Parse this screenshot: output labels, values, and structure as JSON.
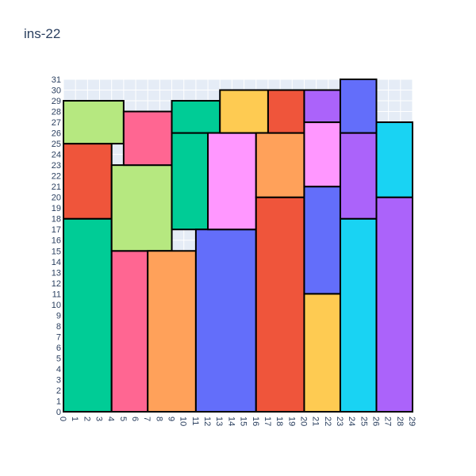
{
  "chart_data": {
    "type": "rect-packing",
    "title": "ins-22",
    "xlim": [
      0,
      29
    ],
    "ylim": [
      0,
      31
    ],
    "x_ticks": [
      0,
      1,
      2,
      3,
      4,
      5,
      6,
      7,
      8,
      9,
      10,
      11,
      12,
      13,
      14,
      15,
      16,
      17,
      18,
      19,
      20,
      21,
      22,
      23,
      24,
      25,
      26,
      27,
      28,
      29
    ],
    "y_ticks": [
      0,
      1,
      2,
      3,
      4,
      5,
      6,
      7,
      8,
      9,
      10,
      11,
      12,
      13,
      14,
      15,
      16,
      17,
      18,
      19,
      20,
      21,
      22,
      23,
      24,
      25,
      26,
      27,
      28,
      29,
      30,
      31
    ],
    "grid": true,
    "plot_bgcolor": "#E5ECF6",
    "rects": [
      {
        "x0": 0,
        "x1": 4,
        "y0": 0,
        "y1": 18,
        "color": "#00CC96"
      },
      {
        "x0": 0,
        "x1": 4,
        "y0": 18,
        "y1": 25,
        "color": "#EF553B"
      },
      {
        "x0": 0,
        "x1": 5,
        "y0": 25,
        "y1": 29,
        "color": "#B6E880"
      },
      {
        "x0": 4,
        "x1": 7,
        "y0": 0,
        "y1": 15,
        "color": "#FF6692"
      },
      {
        "x0": 4,
        "x1": 9,
        "y0": 15,
        "y1": 23,
        "color": "#B6E880"
      },
      {
        "x0": 5,
        "x1": 9,
        "y0": 23,
        "y1": 28,
        "color": "#FF6692"
      },
      {
        "x0": 7,
        "x1": 11,
        "y0": 0,
        "y1": 15,
        "color": "#FFA15A"
      },
      {
        "x0": 9,
        "x1": 12,
        "y0": 17,
        "y1": 26,
        "color": "#00CC96"
      },
      {
        "x0": 9,
        "x1": 13,
        "y0": 26,
        "y1": 29,
        "color": "#00CC96"
      },
      {
        "x0": 11,
        "x1": 16,
        "y0": 0,
        "y1": 17,
        "color": "#636EFA"
      },
      {
        "x0": 12,
        "x1": 16,
        "y0": 17,
        "y1": 26,
        "color": "#FF97FF"
      },
      {
        "x0": 13,
        "x1": 17,
        "y0": 26,
        "y1": 30,
        "color": "#FECB52"
      },
      {
        "x0": 16,
        "x1": 20,
        "y0": 0,
        "y1": 20,
        "color": "#EF553B"
      },
      {
        "x0": 16,
        "x1": 20,
        "y0": 20,
        "y1": 26,
        "color": "#FFA15A"
      },
      {
        "x0": 17,
        "x1": 20,
        "y0": 26,
        "y1": 30,
        "color": "#EF553B"
      },
      {
        "x0": 20,
        "x1": 23,
        "y0": 0,
        "y1": 11,
        "color": "#FECB52"
      },
      {
        "x0": 20,
        "x1": 23,
        "y0": 11,
        "y1": 21,
        "color": "#636EFA"
      },
      {
        "x0": 20,
        "x1": 23,
        "y0": 21,
        "y1": 27,
        "color": "#FF97FF"
      },
      {
        "x0": 20,
        "x1": 23,
        "y0": 27,
        "y1": 30,
        "color": "#AB63FA"
      },
      {
        "x0": 23,
        "x1": 26,
        "y0": 0,
        "y1": 18,
        "color": "#19D3F3"
      },
      {
        "x0": 23,
        "x1": 26,
        "y0": 18,
        "y1": 26,
        "color": "#AB63FA"
      },
      {
        "x0": 23,
        "x1": 26,
        "y0": 26,
        "y1": 31,
        "color": "#636EFA"
      },
      {
        "x0": 26,
        "x1": 29,
        "y0": 0,
        "y1": 20,
        "color": "#AB63FA"
      },
      {
        "x0": 26,
        "x1": 29,
        "y0": 20,
        "y1": 27,
        "color": "#19D3F3"
      }
    ]
  }
}
